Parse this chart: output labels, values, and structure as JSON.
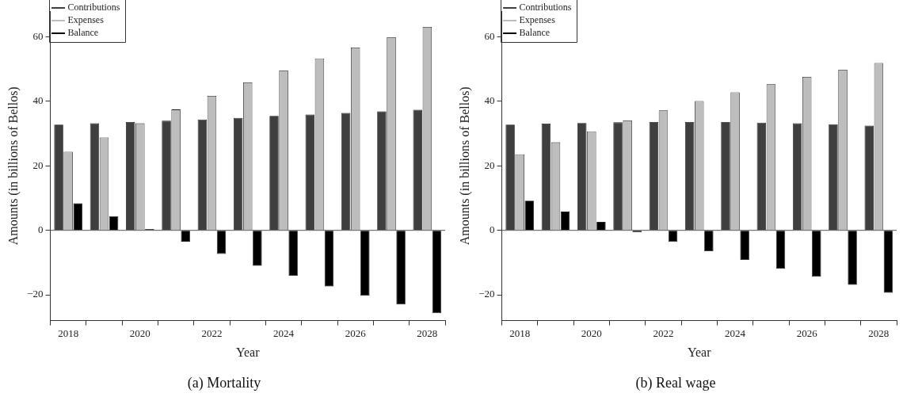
{
  "chart_data": [
    {
      "type": "bar",
      "title": "(a) Mortality",
      "xlabel": "Year",
      "ylabel": "Amounts (in billions of Bellos)",
      "categories": [
        "2018",
        null,
        "2020",
        null,
        "2022",
        null,
        "2024",
        null,
        "2026",
        null,
        "2028"
      ],
      "series": [
        {
          "name": "Contributions",
          "color": "#3f3f3f",
          "values": [
            32.8,
            33.2,
            33.6,
            34.0,
            34.4,
            34.9,
            35.5,
            35.9,
            36.4,
            36.9,
            37.4
          ]
        },
        {
          "name": "Expenses",
          "color": "#bdbdbd",
          "values": [
            24.4,
            28.8,
            33.2,
            37.5,
            41.7,
            45.9,
            49.6,
            53.3,
            56.7,
            59.9,
            63.1
          ]
        },
        {
          "name": "Balance",
          "color": "#000000",
          "values": [
            8.4,
            4.4,
            0.4,
            -3.5,
            -7.3,
            -11.0,
            -14.1,
            -17.4,
            -20.3,
            -23.0,
            -25.7
          ]
        }
      ],
      "ylim": [
        -28,
        68
      ],
      "yticks": [
        -20,
        0,
        20,
        40,
        60
      ],
      "ref_lines": [
        {
          "axis": "y",
          "value": 0,
          "color": "#555555"
        }
      ],
      "legend": "top left",
      "grid": false
    },
    {
      "type": "bar",
      "title": "(b) Real wage",
      "xlabel": "Year",
      "ylabel": "Amounts (in billions of Bellos)",
      "categories": [
        "2018",
        null,
        "2020",
        null,
        "2022",
        null,
        "2024",
        null,
        "2026",
        null,
        "2028"
      ],
      "series": [
        {
          "name": "Contributions",
          "color": "#3f3f3f",
          "values": [
            32.8,
            33.1,
            33.3,
            33.5,
            33.6,
            33.6,
            33.6,
            33.4,
            33.2,
            32.9,
            32.5
          ]
        },
        {
          "name": "Expenses",
          "color": "#bdbdbd",
          "values": [
            23.6,
            27.3,
            30.7,
            34.1,
            37.2,
            40.1,
            42.8,
            45.3,
            47.6,
            49.8,
            51.9
          ]
        },
        {
          "name": "Balance",
          "color": "#000000",
          "values": [
            9.2,
            5.8,
            2.6,
            -0.6,
            -3.6,
            -6.5,
            -9.2,
            -11.9,
            -14.4,
            -16.9,
            -19.4
          ]
        }
      ],
      "ylim": [
        -28,
        68
      ],
      "yticks": [
        -20,
        0,
        20,
        40,
        60
      ],
      "ref_lines": [
        {
          "axis": "y",
          "value": 0,
          "color": "#555555"
        }
      ],
      "legend": "top left",
      "grid": false
    }
  ]
}
